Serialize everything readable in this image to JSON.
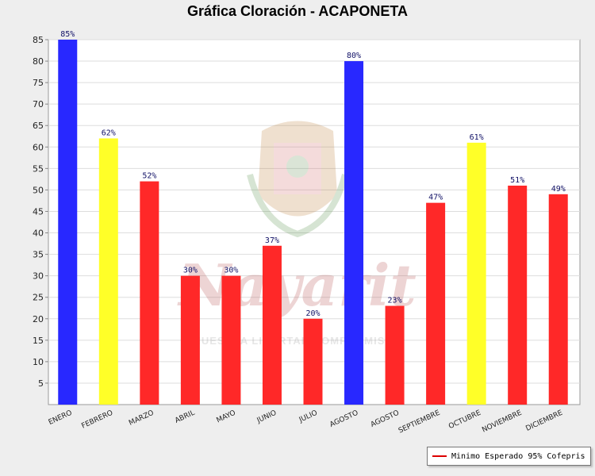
{
  "chart_data": {
    "type": "bar",
    "title": "Gráfica Cloración - ACAPONETA",
    "categories": [
      "ENERO",
      "FEBRERO",
      "MARZO",
      "ABRIL",
      "MAYO",
      "JUNIO",
      "JULIO",
      "AGOSTO",
      "AGOSTO",
      "SEPTIEMBRE",
      "OCTUBRE",
      "NOVIEMBRE",
      "DICIEMBRE"
    ],
    "values": [
      85,
      62,
      52,
      30,
      30,
      37,
      20,
      80,
      23,
      47,
      61,
      51,
      49
    ],
    "data_labels": [
      "85%",
      "62%",
      "52%",
      "30%",
      "30%",
      "37%",
      "20%",
      "80%",
      "23%",
      "47%",
      "61%",
      "51%",
      "49%"
    ],
    "bar_colors": [
      "#2828ff",
      "#ffff28",
      "#ff2828",
      "#ff2828",
      "#ff2828",
      "#ff2828",
      "#ff2828",
      "#2828ff",
      "#ff2828",
      "#ff2828",
      "#ffff28",
      "#ff2828",
      "#ff2828"
    ],
    "ylim": [
      0,
      85
    ],
    "yticks": [
      5,
      10,
      15,
      20,
      25,
      30,
      35,
      40,
      45,
      50,
      55,
      60,
      65,
      70,
      75,
      80,
      85
    ],
    "grid": true,
    "legend": {
      "position": "bottom-right",
      "label": "Minimo Esperado 95% Cofepris",
      "color": "#dd0000"
    }
  },
  "watermark": {
    "script_text": "Nayarit",
    "motto": "NUESTRA LIBERTAD COMPROMISO"
  }
}
